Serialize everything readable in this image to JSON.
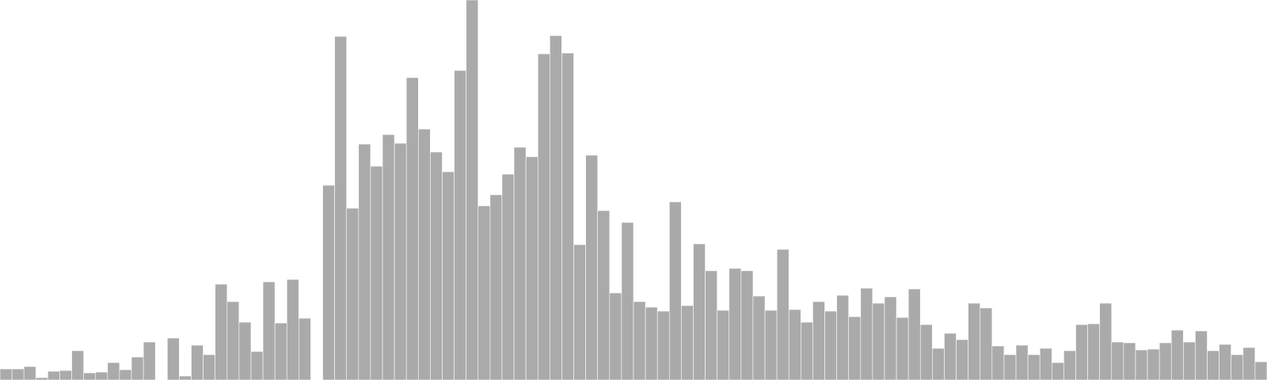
{
  "chart_data": {
    "type": "bar",
    "title": "",
    "xlabel": "",
    "ylabel": "",
    "ylim": [
      0,
      480
    ],
    "grid": false,
    "legend": "none",
    "bar_color": "#aaaaaa",
    "bar_edge_color": "#ffffff",
    "values": [
      14,
      14,
      17,
      3,
      11,
      12,
      37,
      9,
      10,
      22,
      13,
      29,
      48,
      0,
      53,
      5,
      44,
      32,
      121,
      99,
      73,
      36,
      124,
      72,
      127,
      78,
      0,
      246,
      434,
      217,
      298,
      270,
      310,
      299,
      382,
      317,
      288,
      263,
      391,
      480,
      220,
      234,
      260,
      294,
      282,
      412,
      435,
      413,
      171,
      284,
      214,
      110,
      199,
      99,
      92,
      87,
      225,
      94,
      172,
      138,
      88,
      141,
      138,
      106,
      88,
      165,
      89,
      73,
      99,
      87,
      107,
      80,
      116,
      97,
      105,
      79,
      115,
      70,
      40,
      59,
      51,
      97,
      91,
      43,
      32,
      44,
      32,
      40,
      22,
      37,
      70,
      71,
      97,
      48,
      47,
      38,
      39,
      47,
      63,
      48,
      62,
      37,
      45,
      32,
      41,
      23
    ]
  }
}
